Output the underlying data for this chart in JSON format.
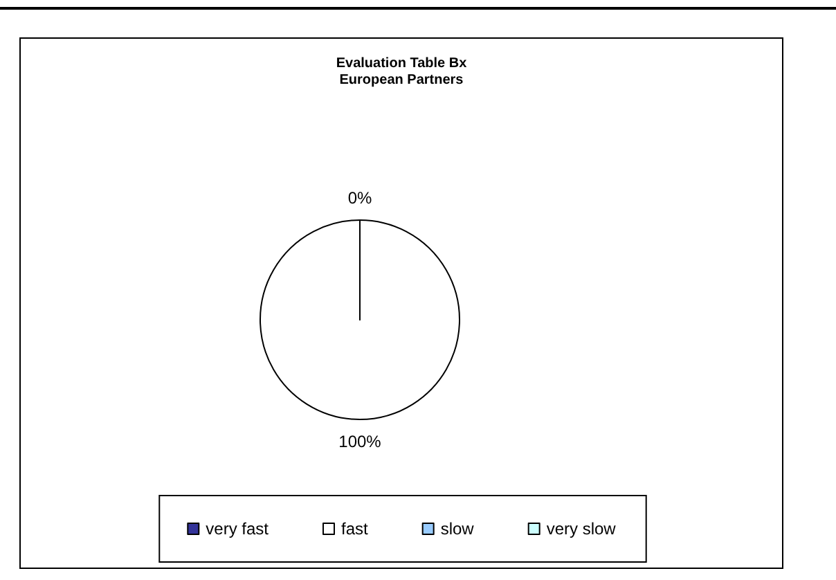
{
  "chart_data": {
    "type": "pie",
    "title": "Evaluation Table Bx",
    "subtitle": "European Partners",
    "categories": [
      "very fast",
      "fast",
      "slow",
      "very slow"
    ],
    "values": [
      0,
      100,
      0,
      0
    ],
    "colors": [
      "#333399",
      "#ffffff",
      "#99ccff",
      "#ccffff"
    ],
    "value_labels": [
      "0%",
      "100%",
      null,
      null
    ],
    "legend": "bottom"
  }
}
